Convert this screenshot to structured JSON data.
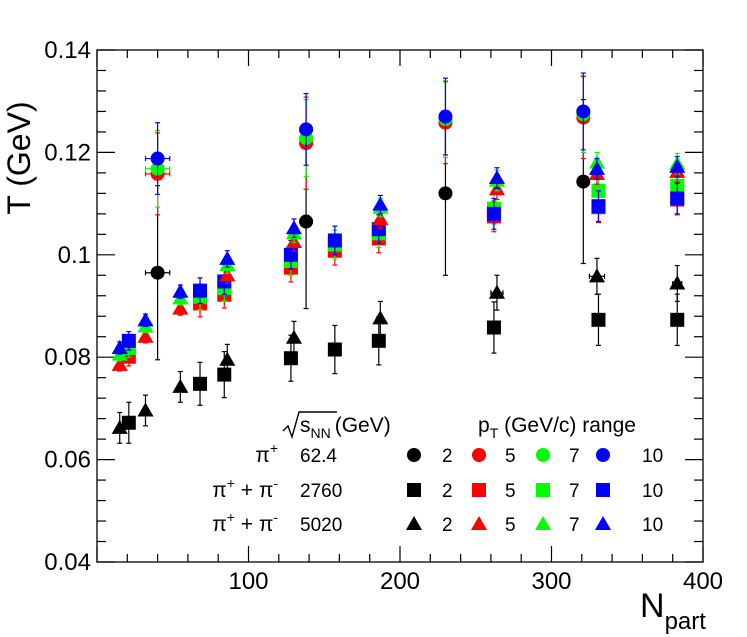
{
  "chart_data": {
    "type": "scatter",
    "title": "",
    "xlabel": "N",
    "xlabel_sub": "part",
    "ylabel": "T (GeV)",
    "xlim": [
      0,
      400
    ],
    "ylim": [
      0.04,
      0.14
    ],
    "x_ticks": [
      "100",
      "200",
      "300",
      "400"
    ],
    "y_ticks": [
      "0.04",
      "0.06",
      "0.08",
      "0.1",
      "0.12",
      "0.14"
    ],
    "grid": false,
    "legend": {
      "placement": "bottom-right",
      "col_energy_header": "(GeV)",
      "col_energy_header_sub": "NN",
      "col_energy_header_sqrt": "s",
      "col_pt_header": "p",
      "col_pt_header_sub": "T",
      "col_pt_header_rest": " (GeV/c) range",
      "rows": [
        {
          "particle": "π",
          "particle_sup": "+",
          "particle_rest": "",
          "particle_rest_sup": "",
          "energy": "62.4",
          "marker": "circle"
        },
        {
          "particle": "π",
          "particle_sup": "+",
          "particle_rest": " + π",
          "particle_rest_sup": "-",
          "energy": "2760",
          "marker": "square"
        },
        {
          "particle": "π",
          "particle_sup": "+",
          "particle_rest": " + π",
          "particle_rest_sup": "-",
          "energy": "5020",
          "marker": "triangle"
        }
      ],
      "pt_values": [
        "2",
        "5",
        "7",
        "10"
      ],
      "colors": [
        "#000000",
        "#ff0000",
        "#00ff00",
        "#0000ff"
      ]
    },
    "series": [
      {
        "name": "62.4 GeV pT 2",
        "marker": "circle",
        "color": "#000000",
        "points": [
          {
            "x": 40,
            "y": 0.0965,
            "xerr": 8,
            "yerr": 0.017
          },
          {
            "x": 138,
            "y": 0.1065,
            "xerr": 4,
            "yerr": 0.017
          },
          {
            "x": 230,
            "y": 0.112,
            "xerr": 0,
            "yerr": 0.016
          },
          {
            "x": 321,
            "y": 0.1143,
            "xerr": 0,
            "yerr": 0.016
          }
        ]
      },
      {
        "name": "62.4 GeV pT 5",
        "marker": "circle",
        "color": "#ff0000",
        "points": [
          {
            "x": 40,
            "y": 0.1158,
            "xerr": 8,
            "yerr": 0.008
          },
          {
            "x": 138,
            "y": 0.1218,
            "xerr": 4,
            "yerr": 0.009
          },
          {
            "x": 230,
            "y": 0.1258,
            "xerr": 0,
            "yerr": 0.008
          },
          {
            "x": 321,
            "y": 0.1268,
            "xerr": 0,
            "yerr": 0.008
          }
        ]
      },
      {
        "name": "62.4 GeV pT 7",
        "marker": "circle",
        "color": "#00ff00",
        "points": [
          {
            "x": 40,
            "y": 0.1168,
            "xerr": 8,
            "yerr": 0.0075
          },
          {
            "x": 138,
            "y": 0.1228,
            "xerr": 4,
            "yerr": 0.0075
          },
          {
            "x": 230,
            "y": 0.1265,
            "xerr": 0,
            "yerr": 0.0075
          },
          {
            "x": 321,
            "y": 0.1275,
            "xerr": 0,
            "yerr": 0.0075
          }
        ]
      },
      {
        "name": "62.4 GeV pT 10",
        "marker": "circle",
        "color": "#0000ff",
        "points": [
          {
            "x": 40,
            "y": 0.1188,
            "xerr": 8,
            "yerr": 0.007
          },
          {
            "x": 138,
            "y": 0.1245,
            "xerr": 4,
            "yerr": 0.007
          },
          {
            "x": 230,
            "y": 0.127,
            "xerr": 0,
            "yerr": 0.0075
          },
          {
            "x": 321,
            "y": 0.128,
            "xerr": 0,
            "yerr": 0.0075
          }
        ]
      },
      {
        "name": "2760 GeV pT 2",
        "marker": "square",
        "color": "#000000",
        "points": [
          {
            "x": 21,
            "y": 0.0672,
            "xerr": 0,
            "yerr": 0.004
          },
          {
            "x": 68,
            "y": 0.0748,
            "xerr": 0,
            "yerr": 0.0042
          },
          {
            "x": 84,
            "y": 0.0766,
            "xerr": 0,
            "yerr": 0.0045
          },
          {
            "x": 128,
            "y": 0.0798,
            "xerr": 0,
            "yerr": 0.0045
          },
          {
            "x": 157,
            "y": 0.0815,
            "xerr": 0,
            "yerr": 0.0047
          },
          {
            "x": 186,
            "y": 0.0832,
            "xerr": 0,
            "yerr": 0.0047
          },
          {
            "x": 262,
            "y": 0.0858,
            "xerr": 0,
            "yerr": 0.005
          },
          {
            "x": 331,
            "y": 0.0873,
            "xerr": 0,
            "yerr": 0.005
          },
          {
            "x": 383,
            "y": 0.0873,
            "xerr": 0,
            "yerr": 0.005
          }
        ]
      },
      {
        "name": "2760 GeV pT 5",
        "marker": "square",
        "color": "#ff0000",
        "points": [
          {
            "x": 21,
            "y": 0.0801,
            "xerr": 0,
            "yerr": 0.0018
          },
          {
            "x": 68,
            "y": 0.0905,
            "xerr": 0,
            "yerr": 0.0026
          },
          {
            "x": 84,
            "y": 0.0922,
            "xerr": 0,
            "yerr": 0.0026
          },
          {
            "x": 128,
            "y": 0.0975,
            "xerr": 0,
            "yerr": 0.0028
          },
          {
            "x": 157,
            "y": 0.1008,
            "xerr": 0,
            "yerr": 0.0028
          },
          {
            "x": 186,
            "y": 0.1032,
            "xerr": 0,
            "yerr": 0.0028
          },
          {
            "x": 262,
            "y": 0.1075,
            "xerr": 0,
            "yerr": 0.003
          },
          {
            "x": 331,
            "y": 0.1093,
            "xerr": 0,
            "yerr": 0.003
          },
          {
            "x": 383,
            "y": 0.1108,
            "xerr": 0,
            "yerr": 0.003
          }
        ]
      },
      {
        "name": "2760 GeV pT 7",
        "marker": "square",
        "color": "#00ff00",
        "points": [
          {
            "x": 21,
            "y": 0.0818,
            "xerr": 0,
            "yerr": 0.0018
          },
          {
            "x": 68,
            "y": 0.0918,
            "xerr": 0,
            "yerr": 0.0025
          },
          {
            "x": 84,
            "y": 0.0935,
            "xerr": 0,
            "yerr": 0.0025
          },
          {
            "x": 128,
            "y": 0.0988,
            "xerr": 0,
            "yerr": 0.0028
          },
          {
            "x": 157,
            "y": 0.102,
            "xerr": 0,
            "yerr": 0.0028
          },
          {
            "x": 186,
            "y": 0.1042,
            "xerr": 0,
            "yerr": 0.0028
          },
          {
            "x": 262,
            "y": 0.109,
            "xerr": 0,
            "yerr": 0.003
          },
          {
            "x": 331,
            "y": 0.1125,
            "xerr": 0,
            "yerr": 0.003
          },
          {
            "x": 383,
            "y": 0.1135,
            "xerr": 0,
            "yerr": 0.003
          }
        ]
      },
      {
        "name": "2760 GeV pT 10",
        "marker": "square",
        "color": "#0000ff",
        "points": [
          {
            "x": 21,
            "y": 0.0832,
            "xerr": 0,
            "yerr": 0.0018
          },
          {
            "x": 68,
            "y": 0.093,
            "xerr": 0,
            "yerr": 0.0025
          },
          {
            "x": 84,
            "y": 0.0948,
            "xerr": 0,
            "yerr": 0.0025
          },
          {
            "x": 128,
            "y": 0.1,
            "xerr": 0,
            "yerr": 0.0028
          },
          {
            "x": 157,
            "y": 0.1028,
            "xerr": 0,
            "yerr": 0.0028
          },
          {
            "x": 186,
            "y": 0.105,
            "xerr": 0,
            "yerr": 0.0028
          },
          {
            "x": 262,
            "y": 0.108,
            "xerr": 0,
            "yerr": 0.003
          },
          {
            "x": 331,
            "y": 0.1095,
            "xerr": 0,
            "yerr": 0.003
          },
          {
            "x": 383,
            "y": 0.111,
            "xerr": 0,
            "yerr": 0.003
          }
        ]
      },
      {
        "name": "5020 GeV pT 2",
        "marker": "triangle",
        "color": "#000000",
        "points": [
          {
            "x": 15,
            "y": 0.0662,
            "xerr": 0,
            "yerr": 0.003
          },
          {
            "x": 32,
            "y": 0.0696,
            "xerr": 0,
            "yerr": 0.003
          },
          {
            "x": 55,
            "y": 0.0742,
            "xerr": 0,
            "yerr": 0.003
          },
          {
            "x": 86,
            "y": 0.0795,
            "xerr": 0,
            "yerr": 0.003
          },
          {
            "x": 130,
            "y": 0.0838,
            "xerr": 0,
            "yerr": 0.0032
          },
          {
            "x": 187,
            "y": 0.0876,
            "xerr": 0,
            "yerr": 0.0033
          },
          {
            "x": 264,
            "y": 0.0926,
            "xerr": 4,
            "yerr": 0.0034
          },
          {
            "x": 330,
            "y": 0.0958,
            "xerr": 5,
            "yerr": 0.0035
          },
          {
            "x": 383,
            "y": 0.0944,
            "xerr": 3,
            "yerr": 0.0035
          }
        ]
      },
      {
        "name": "5020 GeV pT 5",
        "marker": "triangle",
        "color": "#ff0000",
        "points": [
          {
            "x": 15,
            "y": 0.0785,
            "xerr": 0,
            "yerr": 0.0012
          },
          {
            "x": 32,
            "y": 0.084,
            "xerr": 0,
            "yerr": 0.0012
          },
          {
            "x": 55,
            "y": 0.0895,
            "xerr": 0,
            "yerr": 0.0013
          },
          {
            "x": 86,
            "y": 0.096,
            "xerr": 0,
            "yerr": 0.0016
          },
          {
            "x": 130,
            "y": 0.1025,
            "xerr": 0,
            "yerr": 0.0018
          },
          {
            "x": 187,
            "y": 0.107,
            "xerr": 0,
            "yerr": 0.0018
          },
          {
            "x": 264,
            "y": 0.1128,
            "xerr": 0,
            "yerr": 0.002
          },
          {
            "x": 330,
            "y": 0.1158,
            "xerr": 0,
            "yerr": 0.002
          },
          {
            "x": 383,
            "y": 0.1162,
            "xerr": 0,
            "yerr": 0.002
          }
        ]
      },
      {
        "name": "5020 GeV pT 7",
        "marker": "triangle",
        "color": "#00ff00",
        "points": [
          {
            "x": 15,
            "y": 0.0805,
            "xerr": 0,
            "yerr": 0.0012
          },
          {
            "x": 32,
            "y": 0.086,
            "xerr": 0,
            "yerr": 0.0012
          },
          {
            "x": 55,
            "y": 0.0915,
            "xerr": 0,
            "yerr": 0.0013
          },
          {
            "x": 86,
            "y": 0.098,
            "xerr": 0,
            "yerr": 0.0016
          },
          {
            "x": 130,
            "y": 0.1042,
            "xerr": 0,
            "yerr": 0.0018
          },
          {
            "x": 187,
            "y": 0.1092,
            "xerr": 0,
            "yerr": 0.0018
          },
          {
            "x": 264,
            "y": 0.1145,
            "xerr": 0,
            "yerr": 0.002
          },
          {
            "x": 330,
            "y": 0.118,
            "xerr": 0,
            "yerr": 0.002
          },
          {
            "x": 383,
            "y": 0.1178,
            "xerr": 0,
            "yerr": 0.002
          }
        ]
      },
      {
        "name": "5020 GeV pT 10",
        "marker": "triangle",
        "color": "#0000ff",
        "points": [
          {
            "x": 15,
            "y": 0.0818,
            "xerr": 0,
            "yerr": 0.0012
          },
          {
            "x": 32,
            "y": 0.0872,
            "xerr": 0,
            "yerr": 0.0012
          },
          {
            "x": 55,
            "y": 0.0928,
            "xerr": 0,
            "yerr": 0.0013
          },
          {
            "x": 86,
            "y": 0.0992,
            "xerr": 0,
            "yerr": 0.0016
          },
          {
            "x": 130,
            "y": 0.1052,
            "xerr": 0,
            "yerr": 0.0018
          },
          {
            "x": 187,
            "y": 0.1098,
            "xerr": 0,
            "yerr": 0.0018
          },
          {
            "x": 264,
            "y": 0.115,
            "xerr": 0,
            "yerr": 0.002
          },
          {
            "x": 330,
            "y": 0.1168,
            "xerr": 0,
            "yerr": 0.002
          },
          {
            "x": 383,
            "y": 0.1172,
            "xerr": 0,
            "yerr": 0.002
          }
        ]
      }
    ]
  }
}
